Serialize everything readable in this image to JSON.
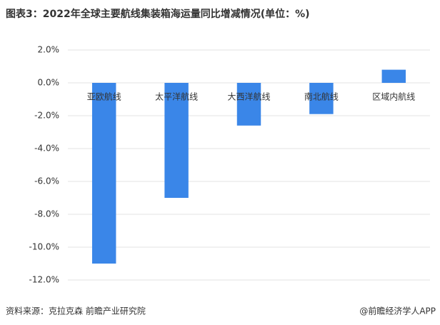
{
  "chart_data": {
    "type": "bar",
    "title": "图表3：2022年全球主要航线集装箱海运量同比增减情况(单位：%)",
    "categories": [
      "亚欧航线",
      "太平洋航线",
      "大西洋航线",
      "南北航线",
      "区域内航线"
    ],
    "values": [
      -11.0,
      -7.0,
      -2.6,
      -1.9,
      0.8
    ],
    "color": "#3a86e8",
    "ylim": [
      -12,
      2
    ],
    "yticks": [
      {
        "value": -12,
        "label": "-12.0%"
      },
      {
        "value": -10,
        "label": "-10.0%"
      },
      {
        "value": -8,
        "label": "-8.0%"
      },
      {
        "value": -6,
        "label": "-6.0%"
      },
      {
        "value": -4,
        "label": "-4.0%"
      },
      {
        "value": -2,
        "label": "-2.0%"
      },
      {
        "value": 0,
        "label": "0.0%"
      },
      {
        "value": 2,
        "label": "2.0%"
      }
    ],
    "grid": true,
    "source": "资料来源：克拉克森 前瞻产业研究院",
    "credit": "@前瞻经济学人APP"
  }
}
